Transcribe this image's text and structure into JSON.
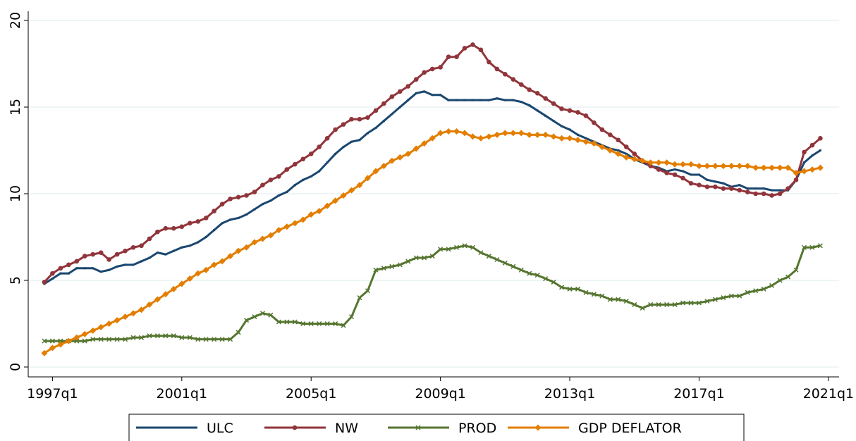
{
  "chart_data": {
    "type": "line",
    "x": [
      1996.75,
      1997,
      1997.25,
      1997.5,
      1997.75,
      1998,
      1998.25,
      1998.5,
      1998.75,
      1999,
      1999.25,
      1999.5,
      1999.75,
      2000,
      2000.25,
      2000.5,
      2000.75,
      2001,
      2001.25,
      2001.5,
      2001.75,
      2002,
      2002.25,
      2002.5,
      2002.75,
      2003,
      2003.25,
      2003.5,
      2003.75,
      2004,
      2004.25,
      2004.5,
      2004.75,
      2005,
      2005.25,
      2005.5,
      2005.75,
      2006,
      2006.25,
      2006.5,
      2006.75,
      2007,
      2007.25,
      2007.5,
      2007.75,
      2008,
      2008.25,
      2008.5,
      2008.75,
      2009,
      2009.25,
      2009.5,
      2009.75,
      2010,
      2010.25,
      2010.5,
      2010.75,
      2011,
      2011.25,
      2011.5,
      2011.75,
      2012,
      2012.25,
      2012.5,
      2012.75,
      2013,
      2013.25,
      2013.5,
      2013.75,
      2014,
      2014.25,
      2014.5,
      2014.75,
      2015,
      2015.25,
      2015.5,
      2015.75,
      2016,
      2016.25,
      2016.5,
      2016.75,
      2017,
      2017.25,
      2017.5,
      2017.75,
      2018,
      2018.25,
      2018.5,
      2018.75,
      2019,
      2019.25,
      2019.5,
      2019.75,
      2020,
      2020.25,
      2020.5,
      2020.75
    ],
    "series": [
      {
        "name": "ULC",
        "color": "#1a476f",
        "marker": "square",
        "values": [
          4.8,
          5.1,
          5.4,
          5.4,
          5.7,
          5.7,
          5.7,
          5.5,
          5.6,
          5.8,
          5.9,
          5.9,
          6.1,
          6.3,
          6.6,
          6.5,
          6.7,
          6.9,
          7.0,
          7.2,
          7.5,
          7.9,
          8.3,
          8.5,
          8.6,
          8.8,
          9.1,
          9.4,
          9.6,
          9.9,
          10.1,
          10.5,
          10.8,
          11.0,
          11.3,
          11.8,
          12.3,
          12.7,
          13.0,
          13.1,
          13.5,
          13.8,
          14.2,
          14.6,
          15.0,
          15.4,
          15.8,
          15.9,
          15.7,
          15.7,
          15.4,
          15.4,
          15.4,
          15.4,
          15.4,
          15.4,
          15.5,
          15.4,
          15.4,
          15.3,
          15.1,
          14.8,
          14.5,
          14.2,
          13.9,
          13.7,
          13.4,
          13.2,
          13.0,
          12.8,
          12.6,
          12.5,
          12.3,
          12.0,
          11.8,
          11.6,
          11.5,
          11.3,
          11.4,
          11.3,
          11.1,
          11.1,
          10.8,
          10.7,
          10.6,
          10.4,
          10.5,
          10.3,
          10.3,
          10.3,
          10.2,
          10.2,
          10.2,
          10.8,
          11.8,
          12.2,
          12.5
        ]
      },
      {
        "name": "NW",
        "color": "#90353b",
        "marker": "circle",
        "values": [
          4.9,
          5.4,
          5.7,
          5.9,
          6.1,
          6.4,
          6.5,
          6.6,
          6.2,
          6.5,
          6.7,
          6.9,
          7.0,
          7.4,
          7.8,
          8.0,
          8.0,
          8.1,
          8.3,
          8.4,
          8.6,
          9.0,
          9.4,
          9.7,
          9.8,
          9.9,
          10.1,
          10.5,
          10.8,
          11.0,
          11.4,
          11.7,
          12.0,
          12.3,
          12.7,
          13.2,
          13.7,
          14.0,
          14.3,
          14.3,
          14.4,
          14.8,
          15.2,
          15.6,
          15.9,
          16.2,
          16.6,
          17.0,
          17.2,
          17.3,
          17.9,
          17.9,
          18.4,
          18.6,
          18.3,
          17.6,
          17.2,
          16.9,
          16.6,
          16.3,
          16.0,
          15.8,
          15.5,
          15.2,
          14.9,
          14.8,
          14.7,
          14.5,
          14.1,
          13.7,
          13.4,
          13.1,
          12.7,
          12.3,
          11.9,
          11.6,
          11.4,
          11.2,
          11.1,
          10.9,
          10.6,
          10.5,
          10.4,
          10.4,
          10.3,
          10.3,
          10.2,
          10.1,
          10.0,
          10.0,
          9.9,
          10.0,
          10.3,
          10.8,
          12.4,
          12.8,
          13.2
        ]
      },
      {
        "name": "PROD",
        "color": "#55752f",
        "marker": "x",
        "values": [
          1.5,
          1.5,
          1.5,
          1.5,
          1.5,
          1.5,
          1.6,
          1.6,
          1.6,
          1.6,
          1.6,
          1.7,
          1.7,
          1.8,
          1.8,
          1.8,
          1.8,
          1.7,
          1.7,
          1.6,
          1.6,
          1.6,
          1.6,
          1.6,
          2.0,
          2.7,
          2.9,
          3.1,
          3.0,
          2.6,
          2.6,
          2.6,
          2.5,
          2.5,
          2.5,
          2.5,
          2.5,
          2.4,
          2.9,
          4.0,
          4.4,
          5.6,
          5.7,
          5.8,
          5.9,
          6.1,
          6.3,
          6.3,
          6.4,
          6.8,
          6.8,
          6.9,
          7.0,
          6.9,
          6.6,
          6.4,
          6.2,
          6.0,
          5.8,
          5.6,
          5.4,
          5.3,
          5.1,
          4.9,
          4.6,
          4.5,
          4.5,
          4.3,
          4.2,
          4.1,
          3.9,
          3.9,
          3.8,
          3.6,
          3.4,
          3.6,
          3.6,
          3.6,
          3.6,
          3.7,
          3.7,
          3.7,
          3.8,
          3.9,
          4.0,
          4.1,
          4.1,
          4.3,
          4.4,
          4.5,
          4.7,
          5.0,
          5.2,
          5.6,
          6.9,
          6.9,
          7.0
        ]
      },
      {
        "name": "GDP DEFLATOR",
        "color": "#e37e00",
        "marker": "diamond",
        "values": [
          0.8,
          1.1,
          1.3,
          1.5,
          1.7,
          1.9,
          2.1,
          2.3,
          2.5,
          2.7,
          2.9,
          3.1,
          3.3,
          3.6,
          3.9,
          4.2,
          4.5,
          4.8,
          5.1,
          5.4,
          5.6,
          5.9,
          6.1,
          6.4,
          6.7,
          6.9,
          7.2,
          7.4,
          7.6,
          7.9,
          8.1,
          8.3,
          8.5,
          8.8,
          9.0,
          9.3,
          9.6,
          9.9,
          10.2,
          10.5,
          10.9,
          11.3,
          11.6,
          11.9,
          12.1,
          12.3,
          12.6,
          12.9,
          13.2,
          13.5,
          13.6,
          13.6,
          13.5,
          13.3,
          13.2,
          13.3,
          13.4,
          13.5,
          13.5,
          13.5,
          13.4,
          13.4,
          13.4,
          13.3,
          13.2,
          13.2,
          13.1,
          13.0,
          12.9,
          12.7,
          12.5,
          12.3,
          12.1,
          12.0,
          11.9,
          11.8,
          11.8,
          11.8,
          11.7,
          11.7,
          11.7,
          11.6,
          11.6,
          11.6,
          11.6,
          11.6,
          11.6,
          11.6,
          11.5,
          11.5,
          11.5,
          11.5,
          11.5,
          11.2,
          11.3,
          11.4,
          11.5
        ]
      }
    ],
    "xlim": [
      1996.25,
      2021.33
    ],
    "xticks": [
      {
        "value": 1997,
        "label": "1997q1"
      },
      {
        "value": 2001,
        "label": "2001q1"
      },
      {
        "value": 2005,
        "label": "2005q1"
      },
      {
        "value": 2009,
        "label": "2009q1"
      },
      {
        "value": 2013,
        "label": "2013q1"
      },
      {
        "value": 2017,
        "label": "2017q1"
      },
      {
        "value": 2021,
        "label": "2021q1"
      }
    ],
    "ylim": [
      -0.57,
      20.53
    ],
    "yticks": [
      0,
      5,
      10,
      15,
      20
    ],
    "grid": true,
    "legend": "bottom"
  }
}
